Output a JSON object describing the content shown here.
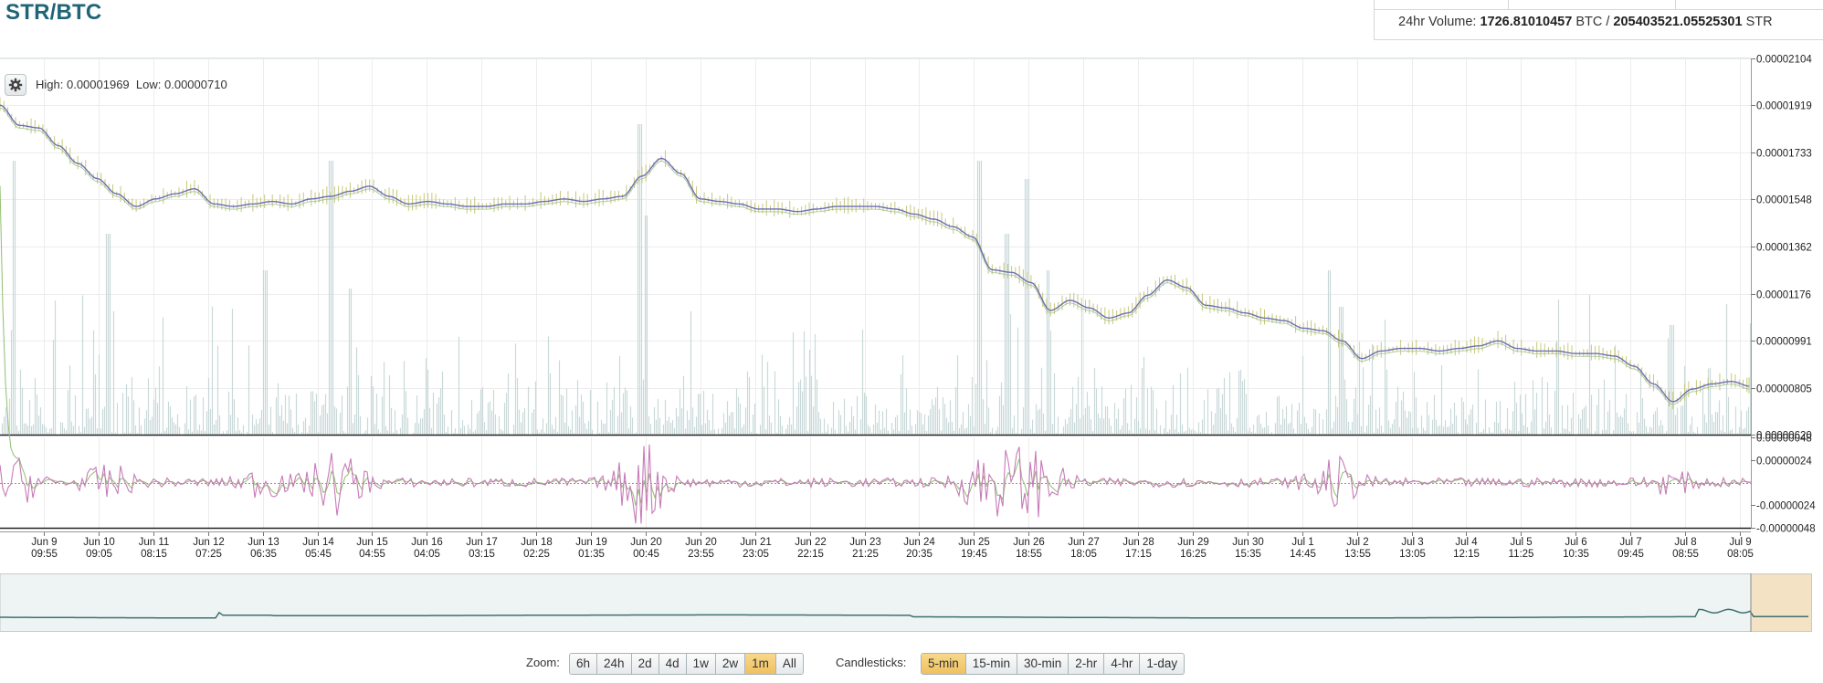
{
  "header": {
    "pair": "STR/BTC",
    "volume_prefix": "24hr Volume:",
    "volume_btc": "1726.81010457",
    "btc_unit": "BTC",
    "volume_sep": "/",
    "volume_str": "205403521.05525301",
    "str_unit": "STR"
  },
  "stats": {
    "high_label": "High:",
    "high": "0.00001969",
    "low_label": "Low:",
    "low": "0.00000710"
  },
  "controls": {
    "settings_icon": "gear-icon",
    "zoom_label": "Zoom:",
    "zoom_options": [
      "6h",
      "24h",
      "2d",
      "4d",
      "1w",
      "2w",
      "1m",
      "All"
    ],
    "zoom_active": "1m",
    "candle_label": "Candlesticks:",
    "candle_options": [
      "5-min",
      "15-min",
      "30-min",
      "2-hr",
      "4-hr",
      "1-day"
    ],
    "candle_active": "5-min"
  },
  "colors": {
    "title": "#1f6577",
    "price_line": "#6d6fb4",
    "candles": "#c8c87a",
    "volume_bars": "#c5d5d5",
    "macd_line": "#c77bb8",
    "macd_signal": "#8fbf6f",
    "navigator_line": "#3f6f70",
    "navigator_fill": "#e3efef",
    "navigator_mask": "#f3e2c3",
    "active_button": "#f0c060"
  },
  "chart_data": [
    {
      "type": "line",
      "title": "",
      "ylim": [
        6.2e-06,
        2.104e-05
      ],
      "y_ticks": [
        "0.00002104",
        "0.00001919",
        "0.00001733",
        "0.00001548",
        "0.00001362",
        "0.00001176",
        "0.00000991",
        "0.00000805",
        "0.00000620"
      ],
      "x_ticks": [
        [
          "Jun 9",
          "09:55"
        ],
        [
          "Jun 10",
          "09:05"
        ],
        [
          "Jun 11",
          "08:15"
        ],
        [
          "Jun 12",
          "07:25"
        ],
        [
          "Jun 13",
          "06:35"
        ],
        [
          "Jun 14",
          "05:45"
        ],
        [
          "Jun 15",
          "04:55"
        ],
        [
          "Jun 16",
          "04:05"
        ],
        [
          "Jun 17",
          "03:15"
        ],
        [
          "Jun 18",
          "02:25"
        ],
        [
          "Jun 19",
          "01:35"
        ],
        [
          "Jun 20",
          "00:45"
        ],
        [
          "Jun 20",
          "23:55"
        ],
        [
          "Jun 21",
          "23:05"
        ],
        [
          "Jun 22",
          "22:15"
        ],
        [
          "Jun 23",
          "21:25"
        ],
        [
          "Jun 24",
          "20:35"
        ],
        [
          "Jun 25",
          "19:45"
        ],
        [
          "Jun 26",
          "18:55"
        ],
        [
          "Jun 27",
          "18:05"
        ],
        [
          "Jun 28",
          "17:15"
        ],
        [
          "Jun 29",
          "16:25"
        ],
        [
          "Jun 30",
          "15:35"
        ],
        [
          "Jul 1",
          "14:45"
        ],
        [
          "Jul 2",
          "13:55"
        ],
        [
          "Jul 3",
          "13:05"
        ],
        [
          "Jul 4",
          "12:15"
        ],
        [
          "Jul 5",
          "11:25"
        ],
        [
          "Jul 6",
          "10:35"
        ],
        [
          "Jul 7",
          "09:45"
        ],
        [
          "Jul 8",
          "08:55"
        ],
        [
          "Jul 9",
          "08:05"
        ]
      ],
      "price": [
        1.92e-05,
        1.84e-05,
        1.83e-05,
        1.76e-05,
        1.69e-05,
        1.63e-05,
        1.57e-05,
        1.52e-05,
        1.55e-05,
        1.57e-05,
        1.59e-05,
        1.53e-05,
        1.52e-05,
        1.53e-05,
        1.54e-05,
        1.53e-05,
        1.55e-05,
        1.56e-05,
        1.58e-05,
        1.6e-05,
        1.56e-05,
        1.53e-05,
        1.54e-05,
        1.53e-05,
        1.52e-05,
        1.52e-05,
        1.53e-05,
        1.53e-05,
        1.54e-05,
        1.55e-05,
        1.54e-05,
        1.55e-05,
        1.56e-05,
        1.64e-05,
        1.71e-05,
        1.65e-05,
        1.55e-05,
        1.54e-05,
        1.53e-05,
        1.51e-05,
        1.51e-05,
        1.5e-05,
        1.51e-05,
        1.52e-05,
        1.52e-05,
        1.52e-05,
        1.51e-05,
        1.49e-05,
        1.47e-05,
        1.44e-05,
        1.4e-05,
        1.27e-05,
        1.26e-05,
        1.22e-05,
        1.11e-05,
        1.15e-05,
        1.12e-05,
        1.08e-05,
        1.1e-05,
        1.17e-05,
        1.23e-05,
        1.2e-05,
        1.13e-05,
        1.12e-05,
        1.1e-05,
        1.08e-05,
        1.07e-05,
        1.04e-05,
        1.03e-05,
        9.9e-06,
        9.2e-06,
        9.5e-06,
        9.6e-06,
        9.6e-06,
        9.5e-06,
        9.6e-06,
        9.7e-06,
        9.9e-06,
        9.6e-06,
        9.5e-06,
        9.5e-06,
        9.4e-06,
        9.4e-06,
        9.3e-06,
        8.9e-06,
        8.2e-06,
        7.5e-06,
        8e-06,
        8.2e-06,
        8.3e-06,
        8.1e-06
      ],
      "volume_max_label": ""
    },
    {
      "type": "line",
      "title": "",
      "ylim": [
        -4.8e-07,
        4.8e-07
      ],
      "y_ticks": [
        "0.00000048",
        "0.00000024",
        "-0.00000024",
        "-0.00000048"
      ]
    },
    {
      "type": "area",
      "title": ""
    }
  ]
}
